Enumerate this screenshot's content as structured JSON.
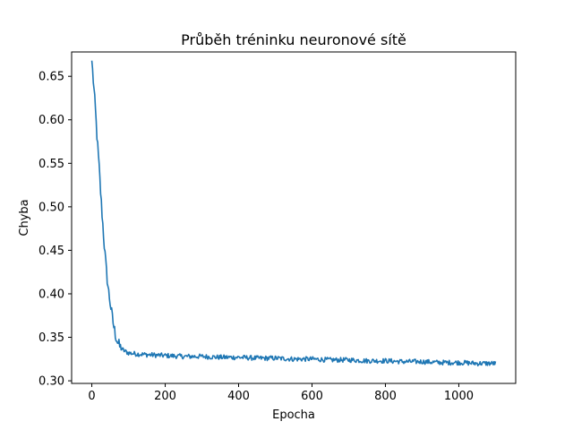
{
  "chart_data": {
    "type": "line",
    "title": "Průběh tréninku neuronové sítě",
    "xlabel": "Epocha",
    "ylabel": "Chyba",
    "xlim": [
      -55,
      1155
    ],
    "ylim": [
      0.297,
      0.678
    ],
    "xticks": [
      0,
      200,
      400,
      600,
      800,
      1000
    ],
    "yticks": [
      0.3,
      0.35,
      0.4,
      0.45,
      0.5,
      0.55,
      0.6,
      0.65
    ],
    "ytick_labels": [
      "0.30",
      "0.35",
      "0.40",
      "0.45",
      "0.50",
      "0.55",
      "0.60",
      "0.65"
    ],
    "grid": false,
    "legend": "none",
    "color": "#1f77b4",
    "series": [
      {
        "x": [
          0,
          5,
          10,
          15,
          20,
          25,
          30,
          35,
          40,
          45,
          50,
          55,
          60,
          65,
          70,
          75,
          80,
          90,
          100,
          120,
          150,
          200,
          250,
          300,
          350,
          400,
          450,
          500,
          550,
          600,
          650,
          700,
          750,
          800,
          850,
          900,
          950,
          1000,
          1050,
          1100
        ],
        "y": [
          0.668,
          0.64,
          0.61,
          0.575,
          0.545,
          0.51,
          0.48,
          0.45,
          0.425,
          0.405,
          0.39,
          0.375,
          0.362,
          0.352,
          0.345,
          0.34,
          0.337,
          0.334,
          0.332,
          0.331,
          0.33,
          0.329,
          0.328,
          0.328,
          0.327,
          0.327,
          0.326,
          0.326,
          0.325,
          0.325,
          0.324,
          0.324,
          0.323,
          0.323,
          0.322,
          0.322,
          0.321,
          0.321,
          0.32,
          0.32
        ]
      }
    ]
  }
}
